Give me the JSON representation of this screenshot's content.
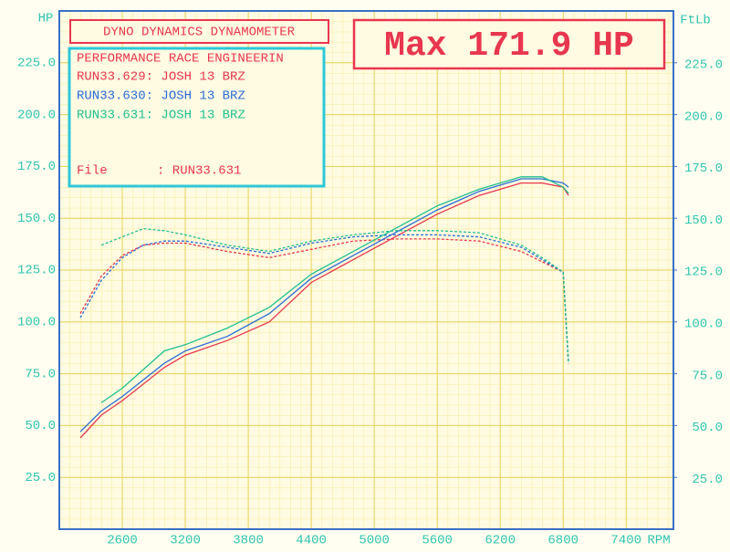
{
  "chart_data": {
    "type": "line",
    "title": "DYNO DYNAMICS DYNAMOMETER",
    "max_label": "Max 171.9 HP",
    "shop": "PERFORMANCE RACE ENGINEERIN",
    "file_label": "File",
    "file_value": ": RUN33.631",
    "y_label": "HP",
    "y2_label": "FtLb",
    "x_label": "RPM",
    "x": [
      2200,
      2400,
      2600,
      2800,
      3000,
      3200,
      3600,
      4000,
      4400,
      4800,
      5200,
      5600,
      6000,
      6400,
      6600,
      6800,
      6850
    ],
    "xlim": [
      2000,
      7850
    ],
    "xticks": [
      2600,
      3200,
      3800,
      4400,
      5000,
      5600,
      6200,
      6800,
      7400
    ],
    "ylim": [
      0,
      250
    ],
    "yticks": [
      {
        "value": 25,
        "label": "25.0"
      },
      {
        "value": 50,
        "label": "50.0"
      },
      {
        "value": 75,
        "label": "75.0"
      },
      {
        "value": 100,
        "label": "100.0"
      },
      {
        "value": 125,
        "label": "125.0"
      },
      {
        "value": 150,
        "label": "150.0"
      },
      {
        "value": 175,
        "label": "175.0"
      },
      {
        "value": 200,
        "label": "200.0"
      },
      {
        "value": 225,
        "label": "225.0"
      }
    ],
    "y2lim": [
      0,
      250
    ],
    "y2ticks": [
      {
        "value": 25,
        "label": "25.0"
      },
      {
        "value": 50,
        "label": "50.0"
      },
      {
        "value": 75,
        "label": "75.0"
      },
      {
        "value": 100,
        "label": "100.0"
      },
      {
        "value": 125,
        "label": "125.0"
      },
      {
        "value": 150,
        "label": "150.0"
      },
      {
        "value": 175,
        "label": "175.0"
      },
      {
        "value": 200,
        "label": "200.0"
      },
      {
        "value": 225,
        "label": "225.0"
      }
    ],
    "grid": true,
    "series": [
      {
        "name": "RUN33.629: JOSH 13 BRZ",
        "color": "#e8364e",
        "hp": [
          44,
          55,
          62,
          70,
          78,
          84,
          91,
          100,
          119,
          130,
          141,
          152,
          161,
          167,
          167,
          165,
          161
        ],
        "torque": [
          104,
          122,
          132,
          137,
          138,
          138,
          134,
          131,
          135,
          139,
          140,
          140,
          139,
          134,
          129,
          124,
          80
        ]
      },
      {
        "name": "RUN33.630: JOSH 13 BRZ",
        "color": "#2a6cd4",
        "hp": [
          47,
          57,
          64,
          72,
          80,
          86,
          93,
          104,
          121,
          132,
          143,
          154,
          163,
          169,
          169,
          167,
          165
        ],
        "torque": [
          102,
          120,
          131,
          137,
          139,
          139,
          136,
          133,
          138,
          141,
          142,
          142,
          141,
          136,
          130,
          124,
          80
        ]
      },
      {
        "name": "RUN33.631: JOSH 13 BRZ",
        "color": "#1fbf8f",
        "hp": [
          null,
          61,
          68,
          77,
          86,
          89,
          97,
          107,
          123,
          134,
          145,
          156,
          164,
          170,
          170,
          165,
          162
        ],
        "torque": [
          null,
          137,
          141,
          145,
          144,
          142,
          137,
          134,
          139,
          142,
          144,
          144,
          143,
          137,
          131,
          124,
          80
        ]
      }
    ]
  }
}
